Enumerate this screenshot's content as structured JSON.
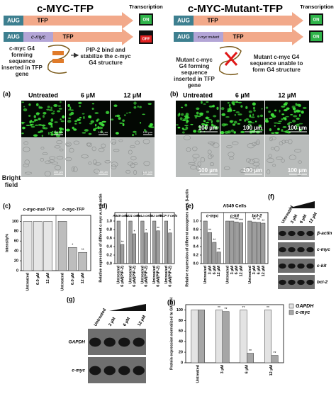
{
  "top": {
    "left": {
      "title": "c-MYC-TFP",
      "transcription": "Transcription",
      "aug": "AUG",
      "tfp": "TFP",
      "insert": "c-myc",
      "on": "ON",
      "off": "OFF",
      "note1": "c-myc G4 forming sequence inserted in TFP gene",
      "note2": "PIP-2 bind and stabilize the c-myc G4 structure"
    },
    "right": {
      "title": "c-MYC-Mutant-TFP",
      "transcription": "Transcription",
      "aug": "AUG",
      "tfp": "TFP",
      "insert": "c-myc mutant",
      "on": "ON",
      "note1": "Mutant c-myc G4 forming sequence inserted in TFP gene",
      "note2": "Mutant c-myc G4 sequence unable to form G4 structure"
    }
  },
  "panel_a": {
    "label": "(a)",
    "conditions": [
      "Untreated",
      "6 µM",
      "12 µM"
    ],
    "bright_field": "Bright field",
    "scale": "100 µm"
  },
  "panel_b": {
    "label": "(b)",
    "conditions": [
      "Untreated",
      "6 µM",
      "12 µM"
    ],
    "scale": "100 µm"
  },
  "blot_f": {
    "label": "(f)",
    "lanes": [
      "Untreated",
      "3 µM",
      "6 µM",
      "12 µM"
    ],
    "bands": [
      "β-actin",
      "c-myc",
      "c-kit",
      "bcl-2"
    ]
  },
  "blot_g": {
    "label": "(g)",
    "lanes": [
      "Untreated",
      "3 µM",
      "6 µM",
      "12 µM"
    ],
    "bands": [
      "GAPDH",
      "c-myc"
    ]
  },
  "chart_data": [
    {
      "type": "block_bar",
      "label": "(c)",
      "ylabel": "Intensity%",
      "ylim": [
        0,
        112
      ],
      "yticks": [
        0,
        20,
        40,
        60,
        80,
        100
      ],
      "categories": [
        "Untreated",
        "6.0 µM",
        "12 µM"
      ],
      "series": [
        {
          "name": "c-myc-mut-TFP",
          "color": "#e6e6e6",
          "values": [
            100,
            100,
            100
          ],
          "stars": [
            null,
            null,
            null
          ]
        },
        {
          "name": "c-myc-TFP",
          "color": "#bdbdbd",
          "values": [
            100,
            47,
            37
          ],
          "stars": [
            null,
            "*",
            "**"
          ]
        }
      ]
    },
    {
      "type": "block_bar",
      "label": "(d)",
      "ylabel": "Relative expression of different c-myc w.r.t. β-actin",
      "ylim": [
        0,
        1.2
      ],
      "yticks": [
        {
          "value": 0,
          "label": "0.0"
        },
        {
          "value": 0.2,
          "label": "0.2"
        },
        {
          "value": 0.4,
          "label": "0.4"
        },
        {
          "value": 0.6,
          "label": "0.6"
        },
        {
          "value": 0.8,
          "label": "0.8"
        },
        {
          "value": 1,
          "label": "1.0"
        }
      ],
      "categories": [
        "Untreated",
        "6 µM(PIP-2)"
      ],
      "series": [
        {
          "name": "A549 cells",
          "color": "#9e9e9e",
          "values": [
            1,
            0.45
          ],
          "stars": [
            null,
            "**"
          ]
        },
        {
          "name": "A431 cells",
          "color": "#9e9e9e",
          "values": [
            1,
            0.7
          ],
          "stars": [
            null,
            "*"
          ]
        },
        {
          "name": "HeLa cells",
          "color": "#9e9e9e",
          "values": [
            1,
            0.72
          ],
          "stars": [
            null,
            "*"
          ]
        },
        {
          "name": "DU cells",
          "color": "#9e9e9e",
          "values": [
            1,
            0.77
          ],
          "stars": [
            null,
            "**"
          ]
        },
        {
          "name": "MCF-7 cells",
          "color": "#9e9e9e",
          "values": [
            1,
            0.72
          ],
          "stars": [
            null,
            "*"
          ]
        }
      ]
    },
    {
      "type": "block_bar",
      "label": "(e)",
      "subtitle": "A549 Cells",
      "ylabel": "Relative expression of different oncogenes w.r.t. β-actin",
      "ylim": [
        0,
        1.2
      ],
      "yticks": [
        {
          "value": 0,
          "label": "0.0"
        },
        {
          "value": 0.2,
          "label": "0.2"
        },
        {
          "value": 0.4,
          "label": "0.4"
        },
        {
          "value": 0.6,
          "label": "0.6"
        },
        {
          "value": 0.8,
          "label": "0.8"
        },
        {
          "value": 1,
          "label": "1.0"
        }
      ],
      "categories": [
        "Untreated",
        "3 µM",
        "6 µM",
        "12 µM"
      ],
      "series": [
        {
          "name": "c-myc",
          "color": "#9e9e9e",
          "values": [
            1,
            0.73,
            0.5,
            0.27
          ],
          "stars": [
            null,
            "**",
            "**",
            "**"
          ]
        },
        {
          "name": "c-kit",
          "color": "#9e9e9e",
          "values": [
            1,
            1,
            0.98,
            0.96
          ],
          "stars": [
            null,
            "***",
            "***",
            "***"
          ]
        },
        {
          "name": "bcl-2",
          "color": "#9e9e9e",
          "values": [
            1,
            0.98,
            0.97,
            0.95
          ],
          "stars": [
            null,
            "**",
            "**",
            "**"
          ]
        }
      ]
    },
    {
      "type": "grouped_bar",
      "label": "(h)",
      "ylabel": "Protein expression normalized to GAPDH",
      "ylim": [
        0,
        110
      ],
      "yticks": [
        0,
        20,
        40,
        60,
        80,
        100
      ],
      "categories": [
        "Untreated",
        "3 µM",
        "6 µM",
        "12 µM"
      ],
      "legend": "top-right",
      "series": [
        {
          "name": "GAPDH",
          "color": "#e3e3e3",
          "values": [
            100,
            100,
            100,
            100
          ],
          "stars": [
            null,
            "**",
            "**",
            "**"
          ]
        },
        {
          "name": "c-myc",
          "color": "#a6a6a6",
          "values": [
            100,
            97,
            18,
            14
          ],
          "stars": [
            null,
            "**",
            "**",
            "**"
          ]
        }
      ]
    }
  ]
}
